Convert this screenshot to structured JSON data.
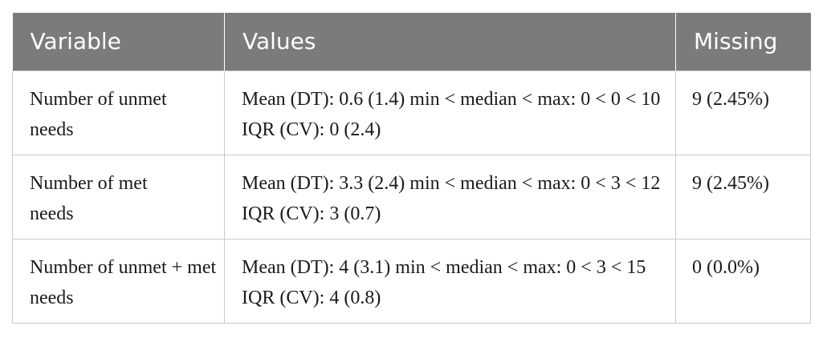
{
  "table": {
    "headers": [
      "Variable",
      "Values",
      "Missing"
    ],
    "rows": [
      {
        "variable": "Number of unmet needs",
        "values": "Mean (DT): 0.6 (1.4) min < median < max: 0 < 0 < 10 IQR (CV): 0 (2.4)",
        "missing": "9 (2.45%)"
      },
      {
        "variable": "Number of met needs",
        "values": "Mean (DT): 3.3 (2.4) min < median < max: 0 < 3 < 12 IQR (CV): 3 (0.7)",
        "missing": "9 (2.45%)"
      },
      {
        "variable": "Number of unmet + met needs",
        "values": "Mean (DT): 4 (3.1) min < median < max: 0 < 3 < 15 IQR (CV): 4 (0.8)",
        "missing": "0 (0.0%)"
      }
    ]
  }
}
